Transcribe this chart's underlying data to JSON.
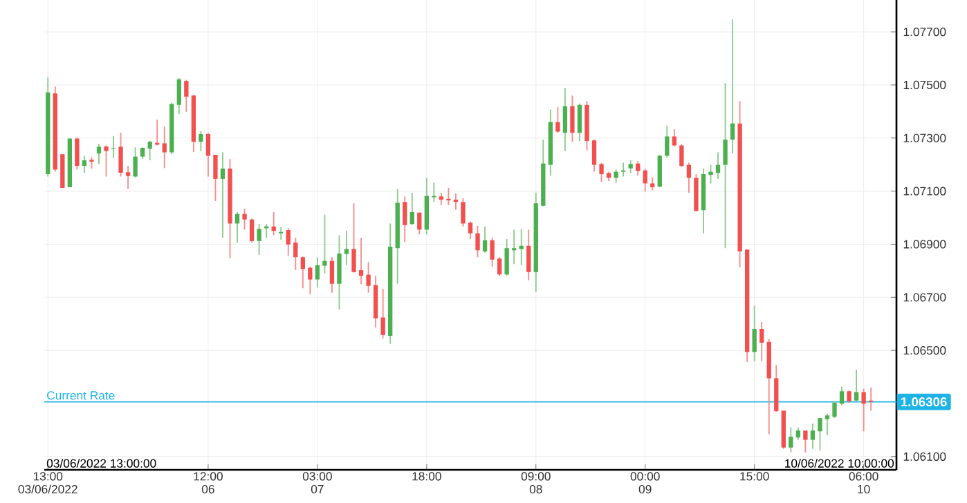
{
  "chart_data": {
    "type": "candlestick",
    "categories": [
      "13:00 03/06/2022",
      null,
      null,
      null,
      null,
      null,
      null,
      null,
      null,
      null,
      null,
      null,
      null,
      null,
      null,
      null,
      null,
      null,
      null,
      null,
      null,
      null,
      "12:00 06",
      null,
      null,
      null,
      null,
      null,
      null,
      null,
      null,
      null,
      null,
      null,
      null,
      null,
      null,
      "03:00 07",
      null,
      null,
      null,
      null,
      null,
      null,
      null,
      null,
      null,
      null,
      null,
      null,
      null,
      null,
      "18:00",
      null,
      null,
      null,
      null,
      null,
      null,
      null,
      null,
      null,
      null,
      null,
      null,
      null,
      null,
      "09:00 08",
      null,
      null,
      null,
      null,
      null,
      null,
      null,
      null,
      null,
      null,
      null,
      null,
      null,
      null,
      "00:00 09",
      null,
      null,
      null,
      null,
      null,
      null,
      null,
      null,
      null,
      null,
      null,
      null,
      null,
      null,
      "15:00",
      null,
      null,
      null,
      null,
      null,
      null,
      null,
      null,
      null,
      null,
      null,
      null,
      null,
      null,
      "06:00 10",
      null
    ],
    "ohlc": [
      [
        1.07164,
        1.07529,
        1.07155,
        1.07472
      ],
      [
        1.07468,
        1.07494,
        1.07173,
        1.07181
      ],
      [
        1.07239,
        1.07239,
        1.07112,
        1.07112
      ],
      [
        1.07115,
        1.07298,
        1.07115,
        1.07298
      ],
      [
        1.07298,
        1.07303,
        1.07181,
        1.07195
      ],
      [
        1.07195,
        1.07233,
        1.07168,
        1.07216
      ],
      [
        1.07218,
        1.07228,
        1.07185,
        1.07211
      ],
      [
        1.07242,
        1.07277,
        1.07202,
        1.07267
      ],
      [
        1.07268,
        1.07272,
        1.07155,
        1.07251
      ],
      [
        1.07258,
        1.07308,
        1.07225,
        1.07261
      ],
      [
        1.07267,
        1.0732,
        1.07155,
        1.07169
      ],
      [
        1.07171,
        1.07195,
        1.07108,
        1.07157
      ],
      [
        1.07155,
        1.07265,
        1.07152,
        1.0723
      ],
      [
        1.0723,
        1.07265,
        1.0722,
        1.07263
      ],
      [
        1.0726,
        1.07289,
        1.07216,
        1.07286
      ],
      [
        1.07282,
        1.07369,
        1.07272,
        1.07275
      ],
      [
        1.0728,
        1.07343,
        1.07186,
        1.07246
      ],
      [
        1.07246,
        1.07434,
        1.07239,
        1.07428
      ],
      [
        1.07425,
        1.07526,
        1.0739,
        1.07521
      ],
      [
        1.07515,
        1.07519,
        1.07399,
        1.07456
      ],
      [
        1.0746,
        1.07463,
        1.07247,
        1.07286
      ],
      [
        1.07286,
        1.07326,
        1.07251,
        1.07315
      ],
      [
        1.07315,
        1.0732,
        1.07155,
        1.07233
      ],
      [
        1.07237,
        1.07237,
        1.07063,
        1.07146
      ],
      [
        1.07146,
        1.07246,
        1.06924,
        1.07185
      ],
      [
        1.07185,
        1.07221,
        1.06847,
        1.06978
      ],
      [
        1.06978,
        1.07021,
        1.06906,
        1.07014
      ],
      [
        1.07014,
        1.07033,
        1.06955,
        1.06993
      ],
      [
        1.06993,
        1.06997,
        1.06906,
        1.06912
      ],
      [
        1.06912,
        1.06976,
        1.0686,
        1.06958
      ],
      [
        1.0696,
        1.06976,
        1.06924,
        1.06967
      ],
      [
        1.06967,
        1.07021,
        1.06934,
        1.0695
      ],
      [
        1.06941,
        1.06964,
        1.06917,
        1.06946
      ],
      [
        1.06953,
        1.0696,
        1.06856,
        1.06899
      ],
      [
        1.06906,
        1.06925,
        1.06802,
        1.06851
      ],
      [
        1.06851,
        1.06854,
        1.06734,
        1.06807
      ],
      [
        1.06811,
        1.06816,
        1.06711,
        1.06767
      ],
      [
        1.06767,
        1.06851,
        1.06738,
        1.06821
      ],
      [
        1.06819,
        1.07011,
        1.0679,
        1.06837
      ],
      [
        1.06837,
        1.06851,
        1.06717,
        1.06751
      ],
      [
        1.06751,
        1.06934,
        1.06654,
        1.06865
      ],
      [
        1.06863,
        1.0695,
        1.06821,
        1.06882
      ],
      [
        1.06882,
        1.07054,
        1.06793,
        1.06795
      ],
      [
        1.06802,
        1.06924,
        1.0675,
        1.06781
      ],
      [
        1.06785,
        1.06833,
        1.06717,
        1.06743
      ],
      [
        1.06746,
        1.06781,
        1.06586,
        1.06621
      ],
      [
        1.06624,
        1.06732,
        1.06546,
        1.06558
      ],
      [
        1.06555,
        1.06978,
        1.06525,
        1.06891
      ],
      [
        1.06885,
        1.07108,
        1.06751,
        1.07056
      ],
      [
        1.07059,
        1.0708,
        1.06908,
        1.06972
      ],
      [
        1.06976,
        1.07094,
        1.06972,
        1.07021
      ],
      [
        1.07019,
        1.07019,
        1.06937,
        1.06955
      ],
      [
        1.06955,
        1.0715,
        1.06937,
        1.07082
      ],
      [
        1.07077,
        1.07132,
        1.07059,
        1.07082
      ],
      [
        1.0708,
        1.07094,
        1.07047,
        1.07068
      ],
      [
        1.07071,
        1.07112,
        1.07047,
        1.07065
      ],
      [
        1.07068,
        1.07091,
        1.0703,
        1.07059
      ],
      [
        1.07059,
        1.07073,
        1.06967,
        1.06978
      ],
      [
        1.06981,
        1.06985,
        1.0692,
        1.06941
      ],
      [
        1.06941,
        1.06969,
        1.06851,
        1.06877
      ],
      [
        1.06873,
        1.06967,
        1.06868,
        1.06915
      ],
      [
        1.06915,
        1.06924,
        1.06816,
        1.06842
      ],
      [
        1.06846,
        1.06851,
        1.06781,
        1.06786
      ],
      [
        1.06786,
        1.0692,
        1.06781,
        1.06885
      ],
      [
        1.06877,
        1.06955,
        1.06825,
        1.06885
      ],
      [
        1.06882,
        1.06958,
        1.06821,
        1.06894
      ],
      [
        1.06894,
        1.06955,
        1.06764,
        1.06795
      ],
      [
        1.06795,
        1.07094,
        1.0672,
        1.07054
      ],
      [
        1.07045,
        1.07294,
        1.07042,
        1.07204
      ],
      [
        1.07199,
        1.07407,
        1.07159,
        1.0736
      ],
      [
        1.0736,
        1.07416,
        1.0732,
        1.07324
      ],
      [
        1.0732,
        1.07489,
        1.07251,
        1.0742
      ],
      [
        1.0742,
        1.0746,
        1.07286,
        1.0732
      ],
      [
        1.0732,
        1.0743,
        1.07289,
        1.07425
      ],
      [
        1.07425,
        1.07439,
        1.07254,
        1.07289
      ],
      [
        1.07291,
        1.07294,
        1.07173,
        1.07199
      ],
      [
        1.07202,
        1.07207,
        1.07134,
        1.07164
      ],
      [
        1.07168,
        1.07173,
        1.07138,
        1.0715
      ],
      [
        1.0715,
        1.07181,
        1.07132,
        1.07173
      ],
      [
        1.07173,
        1.07207,
        1.07155,
        1.07178
      ],
      [
        1.07186,
        1.07216,
        1.07168,
        1.07202
      ],
      [
        1.07204,
        1.07213,
        1.07159,
        1.07176
      ],
      [
        1.07178,
        1.07185,
        1.07098,
        1.07129
      ],
      [
        1.07129,
        1.07152,
        1.07103,
        1.07115
      ],
      [
        1.07117,
        1.07237,
        1.07115,
        1.07233
      ],
      [
        1.07233,
        1.07347,
        1.07225,
        1.07306
      ],
      [
        1.07306,
        1.07333,
        1.07268,
        1.07272
      ],
      [
        1.07272,
        1.07277,
        1.0719,
        1.07195
      ],
      [
        1.07199,
        1.07207,
        1.07094,
        1.0715
      ],
      [
        1.0715,
        1.07164,
        1.07025,
        1.07025
      ],
      [
        1.07028,
        1.07185,
        1.06941,
        1.07164
      ],
      [
        1.07161,
        1.07199,
        1.07129,
        1.07173
      ],
      [
        1.07169,
        1.07246,
        1.07146,
        1.07199
      ],
      [
        1.07199,
        1.07507,
        1.06885,
        1.07294
      ],
      [
        1.07294,
        1.07747,
        1.07242,
        1.07355
      ],
      [
        1.07355,
        1.07439,
        1.06812,
        1.06873
      ],
      [
        1.0688,
        1.0688,
        1.06456,
        1.06494
      ],
      [
        1.06494,
        1.06668,
        1.06459,
        1.06581
      ],
      [
        1.06581,
        1.06607,
        1.06459,
        1.06529
      ],
      [
        1.06532,
        1.06543,
        1.06184,
        1.06395
      ],
      [
        1.06395,
        1.06445,
        1.06268,
        1.06271
      ],
      [
        1.06273,
        1.06273,
        1.06129,
        1.06134
      ],
      [
        1.06134,
        1.0621,
        1.06116,
        1.06175
      ],
      [
        1.06172,
        1.0621,
        1.06163,
        1.06198
      ],
      [
        1.06198,
        1.06198,
        1.06116,
        1.06163
      ],
      [
        1.06163,
        1.06224,
        1.06129,
        1.06198
      ],
      [
        1.06195,
        1.06245,
        1.06123,
        1.06245
      ],
      [
        1.06241,
        1.06262,
        1.06181,
        1.06255
      ],
      [
        1.0625,
        1.06308,
        1.06245,
        1.06303
      ],
      [
        1.06299,
        1.06363,
        1.06294,
        1.06346
      ],
      [
        1.06346,
        1.06349,
        1.06303,
        1.06308
      ],
      [
        1.06311,
        1.06428,
        1.06308,
        1.06343
      ],
      [
        1.06343,
        1.06355,
        1.06195,
        1.06299
      ],
      [
        1.06311,
        1.0636,
        1.06273,
        1.06306
      ]
    ],
    "ylim": [
      1.0605,
      1.0782
    ],
    "yticks": [
      {
        "value": 1.061,
        "label": "1.06100"
      },
      {
        "value": 1.065,
        "label": "1.06500"
      },
      {
        "value": 1.067,
        "label": "1.06700"
      },
      {
        "value": 1.069,
        "label": "1.06900"
      },
      {
        "value": 1.071,
        "label": "1.07100"
      },
      {
        "value": 1.073,
        "label": "1.07300"
      },
      {
        "value": 1.075,
        "label": "1.07500"
      },
      {
        "value": 1.077,
        "label": "1.07700"
      }
    ],
    "grid": true,
    "ref_lines": [
      {
        "axis": "y",
        "value": 1.06306,
        "label": "Current Rate",
        "color": "#1fb3e5"
      }
    ],
    "annotations": [
      "03/06/2022 13:00:00",
      "10/06/2022 10:00:00",
      "1.06306"
    ]
  }
}
